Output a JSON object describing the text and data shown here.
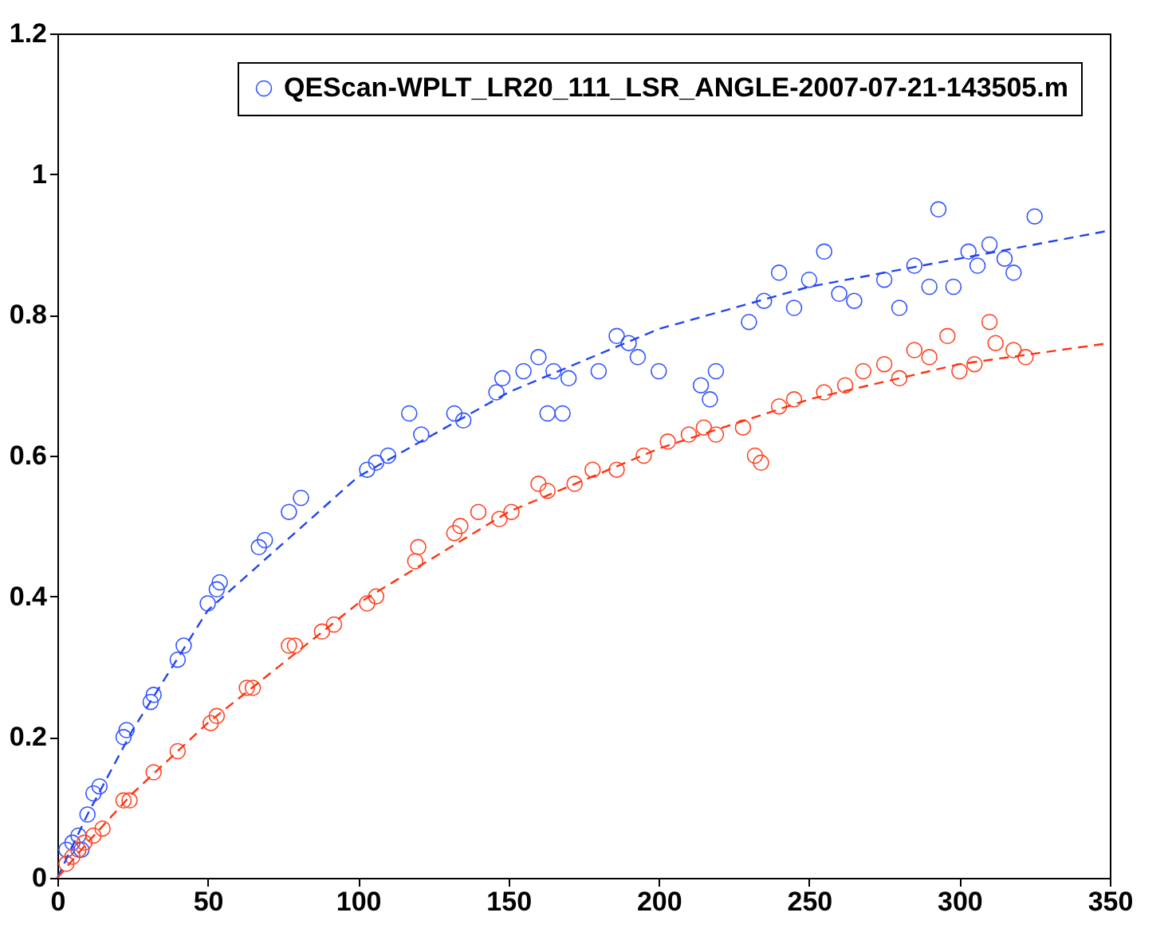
{
  "chart_data": {
    "type": "scatter",
    "xlim": [
      0,
      350
    ],
    "ylim": [
      0,
      1.2
    ],
    "xticks": [
      0,
      50,
      100,
      150,
      200,
      250,
      300,
      350
    ],
    "yticks": [
      0,
      0.2,
      0.4,
      0.6,
      0.8,
      1,
      1.2
    ],
    "grid": false,
    "legend": "top right",
    "series": [
      {
        "name": "QEScan-WPLT_LR20_111_LSR_ANGLE-2007-07-21-143505.m",
        "marker": "circle",
        "color": "#3355ff",
        "x": [
          3,
          5,
          7,
          8,
          10,
          12,
          14,
          22,
          23,
          31,
          32,
          40,
          42,
          50,
          53,
          54,
          67,
          69,
          77,
          81,
          103,
          106,
          110,
          117,
          121,
          132,
          135,
          146,
          148,
          155,
          160,
          163,
          165,
          170,
          168,
          180,
          186,
          190,
          193,
          200,
          214,
          217,
          219,
          230,
          235,
          240,
          245,
          250,
          255,
          260,
          265,
          275,
          280,
          285,
          290,
          293,
          298,
          303,
          306,
          310,
          315,
          318,
          325
        ],
        "values": [
          0.04,
          0.05,
          0.06,
          0.04,
          0.09,
          0.12,
          0.13,
          0.2,
          0.21,
          0.25,
          0.26,
          0.31,
          0.33,
          0.39,
          0.41,
          0.42,
          0.47,
          0.48,
          0.52,
          0.54,
          0.58,
          0.59,
          0.6,
          0.66,
          0.63,
          0.66,
          0.65,
          0.69,
          0.71,
          0.72,
          0.74,
          0.66,
          0.72,
          0.71,
          0.66,
          0.72,
          0.77,
          0.76,
          0.74,
          0.72,
          0.7,
          0.68,
          0.72,
          0.79,
          0.82,
          0.86,
          0.81,
          0.85,
          0.89,
          0.83,
          0.82,
          0.85,
          0.81,
          0.87,
          0.84,
          0.95,
          0.84,
          0.89,
          0.87,
          0.9,
          0.88,
          0.86,
          0.94
        ]
      },
      {
        "marker": "circle",
        "color": "#ff4422",
        "x": [
          3,
          5,
          7,
          9,
          12,
          15,
          22,
          24,
          32,
          40,
          51,
          53,
          63,
          65,
          77,
          79,
          88,
          92,
          103,
          106,
          119,
          120,
          132,
          134,
          140,
          147,
          151,
          160,
          163,
          172,
          178,
          186,
          195,
          203,
          210,
          215,
          219,
          228,
          232,
          234,
          240,
          245,
          255,
          262,
          268,
          275,
          280,
          285,
          290,
          296,
          300,
          305,
          310,
          312,
          318,
          322
        ],
        "values": [
          0.02,
          0.03,
          0.04,
          0.05,
          0.06,
          0.07,
          0.11,
          0.11,
          0.15,
          0.18,
          0.22,
          0.23,
          0.27,
          0.27,
          0.33,
          0.33,
          0.35,
          0.36,
          0.39,
          0.4,
          0.45,
          0.47,
          0.49,
          0.5,
          0.52,
          0.51,
          0.52,
          0.56,
          0.55,
          0.56,
          0.58,
          0.58,
          0.6,
          0.62,
          0.63,
          0.64,
          0.63,
          0.64,
          0.6,
          0.59,
          0.67,
          0.68,
          0.69,
          0.7,
          0.72,
          0.73,
          0.71,
          0.75,
          0.74,
          0.77,
          0.72,
          0.73,
          0.79,
          0.76,
          0.75,
          0.74
        ]
      },
      {
        "type": "line",
        "marker": "none",
        "line_style": "dashed",
        "color": "#2244ee",
        "x": [
          0,
          10,
          25,
          50,
          100,
          150,
          200,
          250,
          300,
          350
        ],
        "values": [
          0,
          0.09,
          0.21,
          0.38,
          0.57,
          0.69,
          0.78,
          0.84,
          0.88,
          0.92
        ]
      },
      {
        "type": "line",
        "marker": "none",
        "line_style": "dashed",
        "color": "#ff3311",
        "x": [
          0,
          10,
          25,
          50,
          100,
          150,
          200,
          250,
          300,
          350
        ],
        "values": [
          0,
          0.05,
          0.12,
          0.22,
          0.39,
          0.52,
          0.61,
          0.68,
          0.73,
          0.76
        ]
      }
    ]
  }
}
